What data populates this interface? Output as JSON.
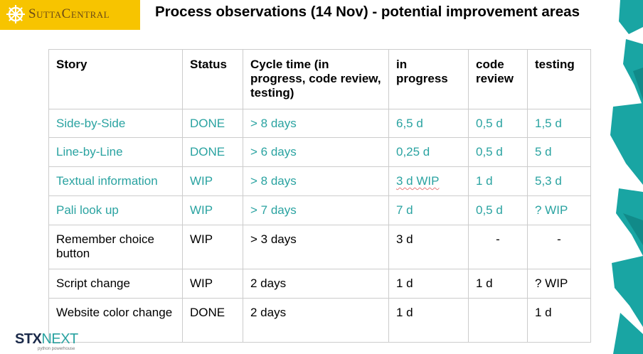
{
  "logo": {
    "text": "SuttaCentral"
  },
  "title": "Process observations (14 Nov) - potential improvement areas",
  "table": {
    "headers": [
      "Story",
      "Status",
      "Cycle time (in progress, code review, testing)",
      "in progress",
      "code review",
      "testing"
    ],
    "rows": [
      [
        "Side-by-Side",
        "DONE",
        "> 8 days",
        "6,5 d",
        "0,5 d",
        "1,5 d"
      ],
      [
        "Line-by-Line",
        "DONE",
        "> 6 days",
        "0,25 d",
        "0,5 d",
        "5 d"
      ],
      [
        "Textual information",
        "WIP",
        "> 8 days",
        "3 d WIP",
        "1 d",
        "5,3 d"
      ],
      [
        "Pali look up",
        "WIP",
        "> 7 days",
        "7 d",
        "0,5 d",
        "? WIP"
      ],
      [
        "Remember choice button",
        "WIP",
        "> 3 days",
        "3 d",
        "-",
        "-"
      ],
      [
        "Script change",
        "WIP",
        "2 days",
        "1 d",
        "1 d",
        "? WIP"
      ],
      [
        "Website color change",
        "DONE",
        "2 days",
        "1 d",
        "",
        "1 d"
      ]
    ]
  },
  "footer_logo": {
    "main_a": "STX",
    "main_b": "NEXT",
    "sub": "python powerhouse"
  },
  "colors": {
    "accent": "#2aa3a1",
    "logo_bg": "#f7c400"
  }
}
